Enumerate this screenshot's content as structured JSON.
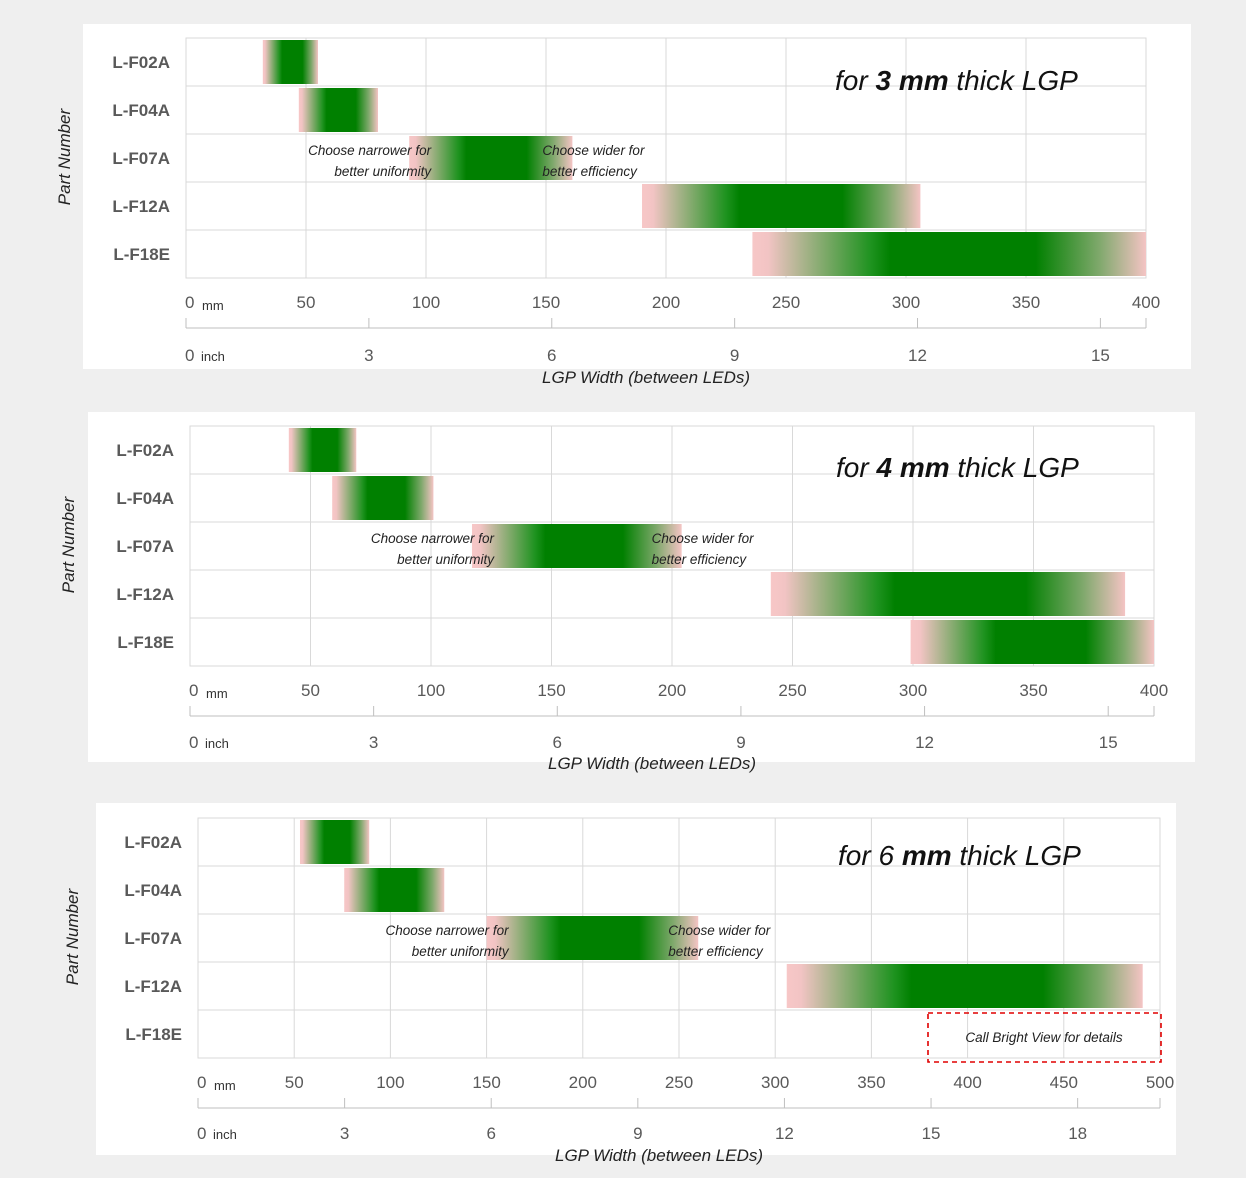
{
  "chart_data": [
    {
      "type": "bar",
      "title": {
        "pre": "for ",
        "bold": "3 mm",
        "post": " thick LGP"
      },
      "ylabel": "Part Number",
      "xlabel": "LGP Width (between LEDs)",
      "unit_primary": "mm",
      "unit_secondary": "inch",
      "xlim": [
        0,
        400
      ],
      "mm_ticks": [
        "0",
        "50",
        "100",
        "150",
        "200",
        "250",
        "300",
        "350",
        "400"
      ],
      "inch_ticks": [
        "0",
        "3",
        "6",
        "9",
        "12",
        "15"
      ],
      "categories": [
        "L-F02A",
        "L-F04A",
        "L-F07A",
        "L-F12A",
        "L-F18E"
      ],
      "ranges": [
        {
          "part": "L-F02A",
          "min": 32,
          "max": 55
        },
        {
          "part": "L-F04A",
          "min": 47,
          "max": 80
        },
        {
          "part": "L-F07A",
          "min": 93,
          "max": 161
        },
        {
          "part": "L-F12A",
          "min": 190,
          "max": 306
        },
        {
          "part": "L-F18E",
          "min": 236,
          "max": 400
        }
      ],
      "annotations": {
        "narrow": [
          "Choose narrower for",
          "better uniformity"
        ],
        "wide": [
          "Choose wider for",
          "better efficiency"
        ]
      }
    },
    {
      "type": "bar",
      "title": {
        "pre": "for ",
        "bold": "4 mm",
        "post": " thick LGP"
      },
      "ylabel": "Part Number",
      "xlabel": "LGP Width (between LEDs)",
      "unit_primary": "mm",
      "unit_secondary": "inch",
      "xlim": [
        0,
        400
      ],
      "mm_ticks": [
        "0",
        "50",
        "100",
        "150",
        "200",
        "250",
        "300",
        "350",
        "400"
      ],
      "inch_ticks": [
        "0",
        "3",
        "6",
        "9",
        "12",
        "15"
      ],
      "categories": [
        "L-F02A",
        "L-F04A",
        "L-F07A",
        "L-F12A",
        "L-F18E"
      ],
      "ranges": [
        {
          "part": "L-F02A",
          "min": 41,
          "max": 69
        },
        {
          "part": "L-F04A",
          "min": 59,
          "max": 101
        },
        {
          "part": "L-F07A",
          "min": 117,
          "max": 204
        },
        {
          "part": "L-F12A",
          "min": 241,
          "max": 388
        },
        {
          "part": "L-F18E",
          "min": 299,
          "max": 400
        }
      ],
      "annotations": {
        "narrow": [
          "Choose narrower for",
          "better uniformity"
        ],
        "wide": [
          "Choose wider for",
          "better efficiency"
        ]
      }
    },
    {
      "type": "bar",
      "title": {
        "pre": "for 6 ",
        "bold": "mm",
        "post": " thick LGP"
      },
      "ylabel": "Part Number",
      "xlabel": "LGP Width (between LEDs)",
      "unit_primary": "mm",
      "unit_secondary": "inch",
      "xlim": [
        0,
        500
      ],
      "mm_ticks": [
        "0",
        "50",
        "100",
        "150",
        "200",
        "250",
        "300",
        "350",
        "400",
        "450",
        "500"
      ],
      "inch_ticks": [
        "0",
        "3",
        "6",
        "9",
        "12",
        "15",
        "18"
      ],
      "categories": [
        "L-F02A",
        "L-F04A",
        "L-F07A",
        "L-F12A",
        "L-F18E"
      ],
      "ranges": [
        {
          "part": "L-F02A",
          "min": 53,
          "max": 89
        },
        {
          "part": "L-F04A",
          "min": 76,
          "max": 128
        },
        {
          "part": "L-F07A",
          "min": 150,
          "max": 260
        },
        {
          "part": "L-F12A",
          "min": 306,
          "max": 491
        }
      ],
      "callout": "Call Bright View for details",
      "annotations": {
        "narrow": [
          "Choose narrower for",
          "better uniformity"
        ],
        "wide": [
          "Choose wider for",
          "better efficiency"
        ]
      }
    }
  ]
}
